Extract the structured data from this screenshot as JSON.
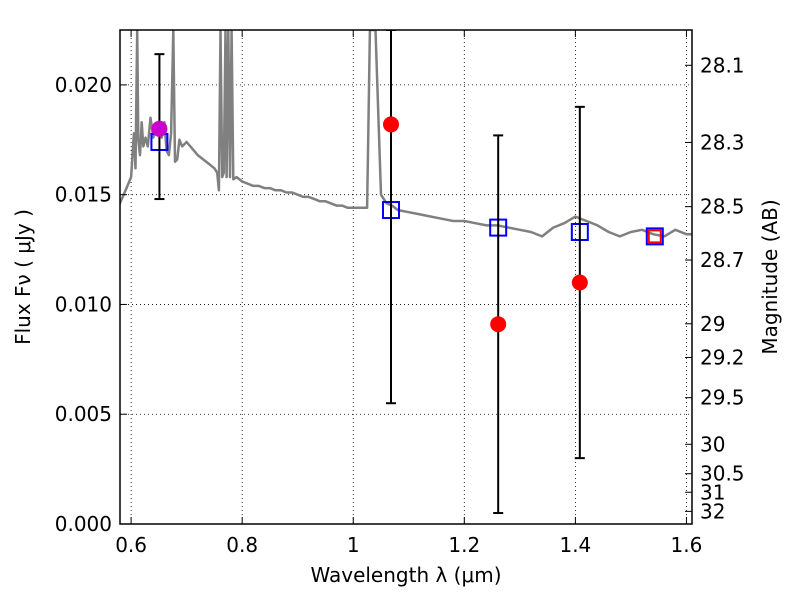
{
  "chart_data": {
    "type": "scatter",
    "xlabel": "Wavelength  λ (μm)",
    "ylabel": "Flux  Fν  ( μJy )",
    "y2label": "Magnitude (AB)",
    "xlim": [
      0.58,
      1.61
    ],
    "ylim": [
      0.0,
      0.0225
    ],
    "grid": true,
    "x_ticks": [
      0.6,
      0.8,
      1.0,
      1.2,
      1.4,
      1.6
    ],
    "x_tick_labels": [
      "0.6",
      "0.8",
      "1",
      "1.2",
      "1.4",
      "1.6"
    ],
    "y_ticks": [
      0.0,
      0.005,
      0.01,
      0.015,
      0.02
    ],
    "y_tick_labels": [
      "0.000",
      "0.005",
      "0.010",
      "0.015",
      "0.020"
    ],
    "mag_ticks": [
      28.1,
      28.3,
      28.5,
      28.7,
      29,
      29.2,
      29.5,
      30,
      30.5,
      31,
      32
    ],
    "mag_tick_labels": [
      "28.1",
      "28.3",
      "28.5",
      "28.7",
      "29",
      "29.2",
      "29.5",
      "30",
      "30.5",
      "31",
      "32"
    ],
    "series": [
      {
        "kind": "line",
        "color": "#808080",
        "points": [
          [
            0.578,
            0.0145
          ],
          [
            0.59,
            0.0152
          ],
          [
            0.6,
            0.0158
          ],
          [
            0.605,
            0.0178
          ],
          [
            0.608,
            0.0162
          ],
          [
            0.611,
            0.0225
          ],
          [
            0.613,
            0.0175
          ],
          [
            0.616,
            0.0168
          ],
          [
            0.619,
            0.0183
          ],
          [
            0.622,
            0.0172
          ],
          [
            0.626,
            0.0176
          ],
          [
            0.63,
            0.0172
          ],
          [
            0.635,
            0.0185
          ],
          [
            0.64,
            0.0176
          ],
          [
            0.645,
            0.0182
          ],
          [
            0.65,
            0.0178
          ],
          [
            0.655,
            0.0176
          ],
          [
            0.66,
            0.0183
          ],
          [
            0.664,
            0.017
          ],
          [
            0.668,
            0.0168
          ],
          [
            0.672,
            0.0178
          ],
          [
            0.676,
            0.0225
          ],
          [
            0.679,
            0.0165
          ],
          [
            0.683,
            0.0166
          ],
          [
            0.687,
            0.0175
          ],
          [
            0.692,
            0.0172
          ],
          [
            0.7,
            0.0174
          ],
          [
            0.71,
            0.0171
          ],
          [
            0.72,
            0.0168
          ],
          [
            0.73,
            0.0166
          ],
          [
            0.74,
            0.0164
          ],
          [
            0.75,
            0.0162
          ],
          [
            0.755,
            0.016
          ],
          [
            0.758,
            0.0152
          ],
          [
            0.761,
            0.0225
          ],
          [
            0.764,
            0.0158
          ],
          [
            0.767,
            0.016
          ],
          [
            0.77,
            0.0225
          ],
          [
            0.772,
            0.0158
          ],
          [
            0.775,
            0.0225
          ],
          [
            0.778,
            0.0158
          ],
          [
            0.781,
            0.0225
          ],
          [
            0.784,
            0.0157
          ],
          [
            0.79,
            0.0158
          ],
          [
            0.8,
            0.0156
          ],
          [
            0.81,
            0.0155
          ],
          [
            0.82,
            0.0154
          ],
          [
            0.83,
            0.0154
          ],
          [
            0.84,
            0.0153
          ],
          [
            0.85,
            0.0153
          ],
          [
            0.86,
            0.0152
          ],
          [
            0.87,
            0.0152
          ],
          [
            0.88,
            0.0151
          ],
          [
            0.89,
            0.0151
          ],
          [
            0.9,
            0.015
          ],
          [
            0.91,
            0.0149
          ],
          [
            0.92,
            0.0149
          ],
          [
            0.93,
            0.0148
          ],
          [
            0.94,
            0.0147
          ],
          [
            0.95,
            0.0147
          ],
          [
            0.96,
            0.0146
          ],
          [
            0.97,
            0.0145
          ],
          [
            0.98,
            0.0145
          ],
          [
            0.99,
            0.0144
          ],
          [
            1.0,
            0.0144
          ],
          [
            1.01,
            0.0144
          ],
          [
            1.025,
            0.0144
          ],
          [
            1.027,
            0.0175
          ],
          [
            1.03,
            0.0225
          ],
          [
            1.04,
            0.0225
          ],
          [
            1.05,
            0.015
          ],
          [
            1.06,
            0.0146
          ],
          [
            1.07,
            0.0145
          ],
          [
            1.08,
            0.0143
          ],
          [
            1.1,
            0.0142
          ],
          [
            1.12,
            0.0141
          ],
          [
            1.14,
            0.014
          ],
          [
            1.16,
            0.0139
          ],
          [
            1.18,
            0.0138
          ],
          [
            1.2,
            0.0138
          ],
          [
            1.22,
            0.0137
          ],
          [
            1.24,
            0.0136
          ],
          [
            1.26,
            0.0136
          ],
          [
            1.28,
            0.0135
          ],
          [
            1.3,
            0.0134
          ],
          [
            1.32,
            0.0133
          ],
          [
            1.34,
            0.0131
          ],
          [
            1.36,
            0.0135
          ],
          [
            1.38,
            0.0137
          ],
          [
            1.4,
            0.014
          ],
          [
            1.42,
            0.0138
          ],
          [
            1.44,
            0.0136
          ],
          [
            1.46,
            0.0133
          ],
          [
            1.48,
            0.0131
          ],
          [
            1.5,
            0.0133
          ],
          [
            1.52,
            0.0134
          ],
          [
            1.54,
            0.0132
          ],
          [
            1.56,
            0.0131
          ],
          [
            1.58,
            0.0134
          ],
          [
            1.6,
            0.0132
          ],
          [
            1.61,
            0.0132
          ]
        ]
      },
      {
        "kind": "open-square",
        "color": "#0000ff",
        "points": [
          [
            0.651,
            0.0174
          ],
          [
            1.068,
            0.0143
          ],
          [
            1.261,
            0.0135
          ],
          [
            1.408,
            0.0133
          ],
          [
            1.543,
            0.0131
          ]
        ]
      },
      {
        "kind": "filled-circle",
        "color": "#ff0000",
        "points": [
          [
            1.068,
            0.0182
          ],
          [
            1.261,
            0.0091
          ],
          [
            1.408,
            0.011
          ]
        ],
        "errors": [
          [
            0.0055,
            0.0225
          ],
          [
            0.0005,
            0.0177
          ],
          [
            0.003,
            0.019
          ]
        ]
      },
      {
        "kind": "filled-circle",
        "color": "#cc00cc",
        "points": [
          [
            0.651,
            0.018
          ]
        ],
        "errors": [
          [
            0.0148,
            0.0214
          ]
        ]
      },
      {
        "kind": "open-square-small",
        "color": "#ff0000",
        "points": [
          [
            1.543,
            0.0131
          ]
        ]
      }
    ]
  }
}
